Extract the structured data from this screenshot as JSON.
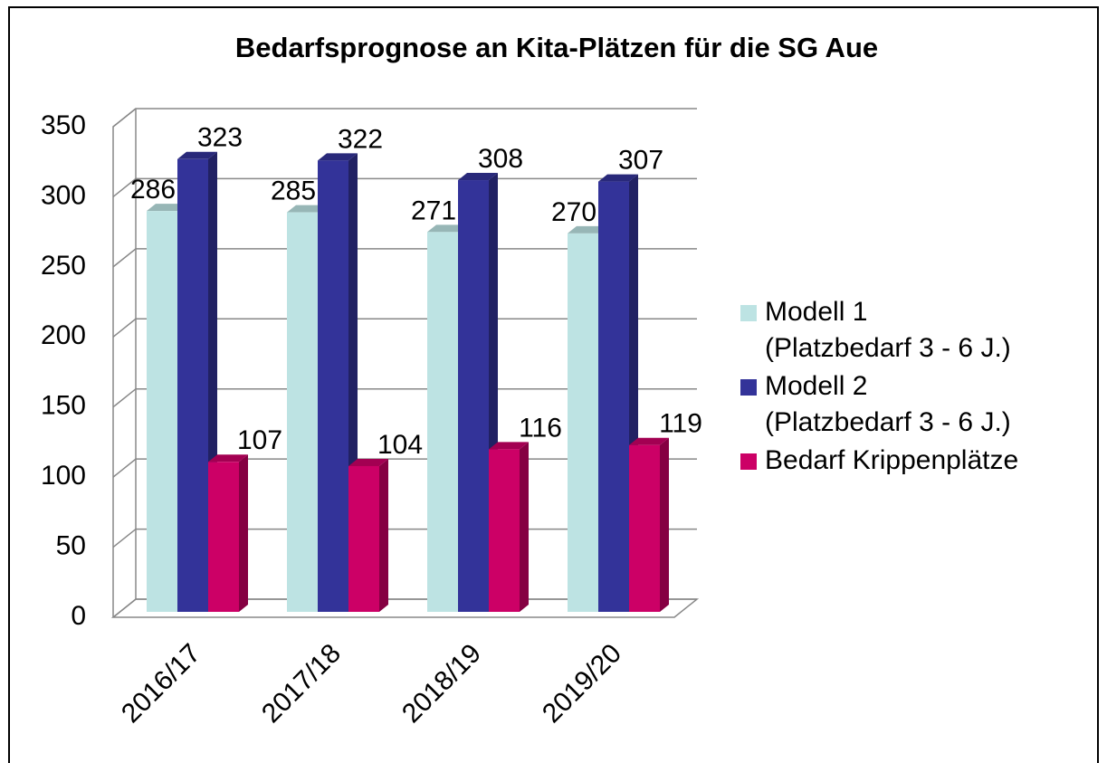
{
  "chart_data": {
    "type": "bar3d",
    "title": "Bedarfsprognose an Kita-Plätzen für die SG Aue",
    "categories": [
      "2016/17",
      "2017/18",
      "2018/19",
      "2019/20"
    ],
    "series": [
      {
        "name": "Modell 1\n(Platzbedarf 3 - 6 J.)",
        "color": "#bde3e3",
        "values": [
          286,
          285,
          271,
          270
        ]
      },
      {
        "name": "Modell 2\n(Platzbedarf 3 - 6 J.)",
        "color": "#333399",
        "values": [
          323,
          322,
          308,
          307
        ]
      },
      {
        "name": "Bedarf Krippenplätze",
        "color": "#cc0066",
        "values": [
          107,
          104,
          116,
          119
        ]
      }
    ],
    "ylim": [
      0,
      350
    ],
    "yticks": [
      0,
      50,
      100,
      150,
      200,
      250,
      300,
      350
    ],
    "grid": true,
    "legend": "right"
  }
}
